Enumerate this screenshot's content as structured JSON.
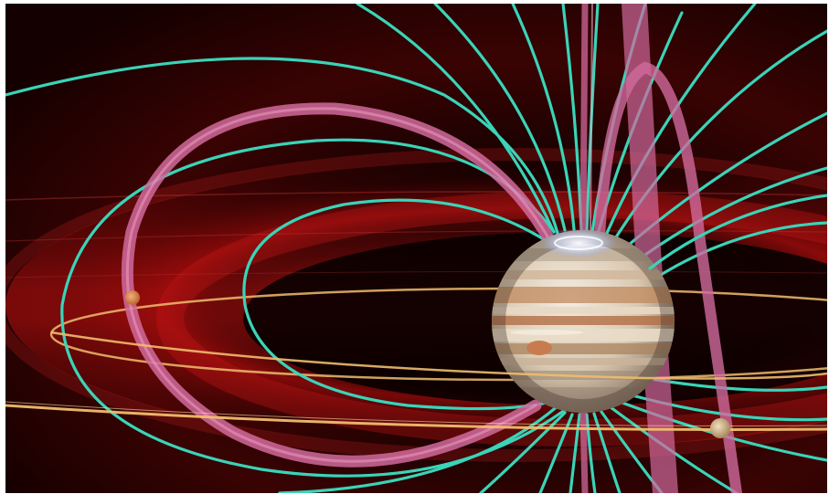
{
  "scene": {
    "subject": "jupiter-magnetosphere-illustration",
    "colors": {
      "background_dark": "#0a0000",
      "plasma_red": "#8e0b0b",
      "field_line": "#3ad4b8",
      "flux_tube": "#d06a9c",
      "orbit": "#f0bd6e",
      "aurora": "#c9d9ff"
    },
    "elements": {
      "planet": "jupiter",
      "moons": [
        "moon-left",
        "moon-right"
      ],
      "orbits": [
        "orbit-inner",
        "orbit-outer"
      ],
      "flux_tubes": [
        "flux-tube-left",
        "flux-tube-right",
        "flux-tube-vertical"
      ]
    }
  }
}
